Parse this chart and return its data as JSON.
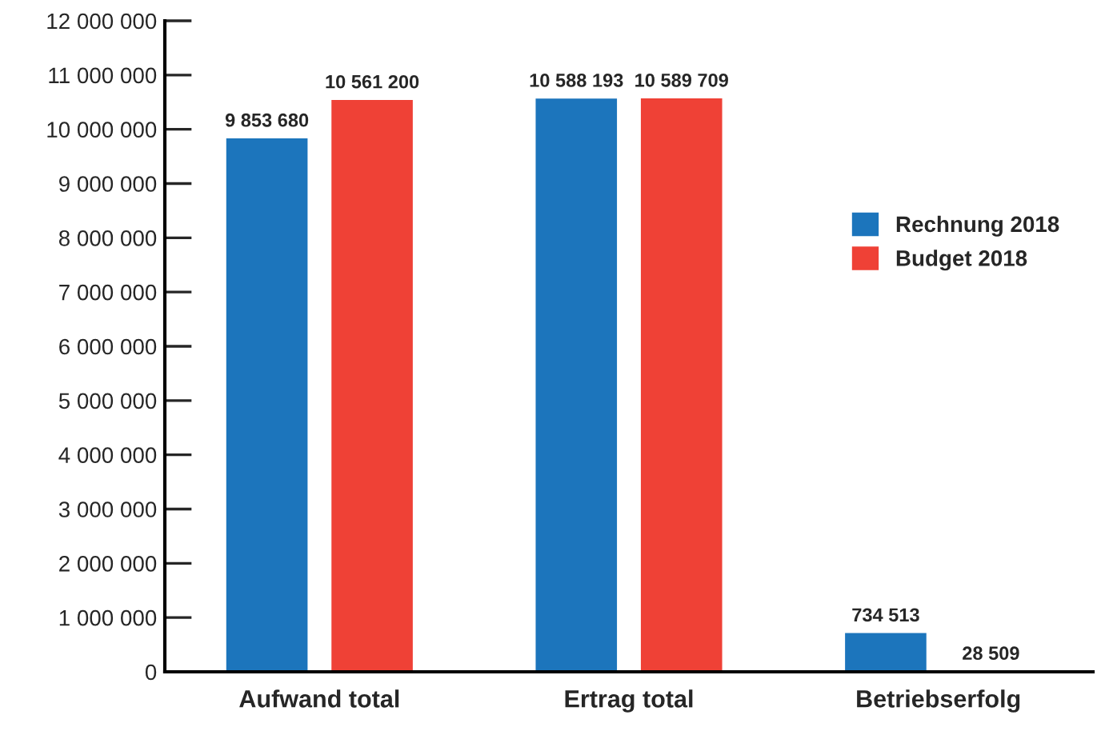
{
  "chart_data": {
    "type": "bar",
    "categories": [
      "Aufwand total",
      "Ertrag total",
      "Betriebserfolg"
    ],
    "series": [
      {
        "name": "Rechnung 2018",
        "color": "#1c75bc",
        "values": [
          9853680,
          10588193,
          734513
        ],
        "value_labels": [
          "9 853 680",
          "10 588 193",
          "734 513"
        ]
      },
      {
        "name": "Budget 2018",
        "color": "#ef4136",
        "values": [
          10561200,
          10589709,
          28509
        ],
        "value_labels": [
          "10 561 200",
          "10 589 709",
          "28 509"
        ]
      }
    ],
    "ylim": [
      0,
      12000000
    ],
    "yticks": [
      {
        "value": 0,
        "label": "0"
      },
      {
        "value": 1000000,
        "label": "1 000 000"
      },
      {
        "value": 2000000,
        "label": "2 000 000"
      },
      {
        "value": 3000000,
        "label": "3 000 000"
      },
      {
        "value": 4000000,
        "label": "4 000 000"
      },
      {
        "value": 5000000,
        "label": "5 000 000"
      },
      {
        "value": 6000000,
        "label": "6 000 000"
      },
      {
        "value": 7000000,
        "label": "7 000 000"
      },
      {
        "value": 8000000,
        "label": "8 000 000"
      },
      {
        "value": 9000000,
        "label": "9 000 000"
      },
      {
        "value": 10000000,
        "label": "10 000 000"
      },
      {
        "value": 11000000,
        "label": "11 000 000"
      },
      {
        "value": 12000000,
        "label": "12 000 000"
      }
    ],
    "grid": false,
    "legend": "right"
  }
}
